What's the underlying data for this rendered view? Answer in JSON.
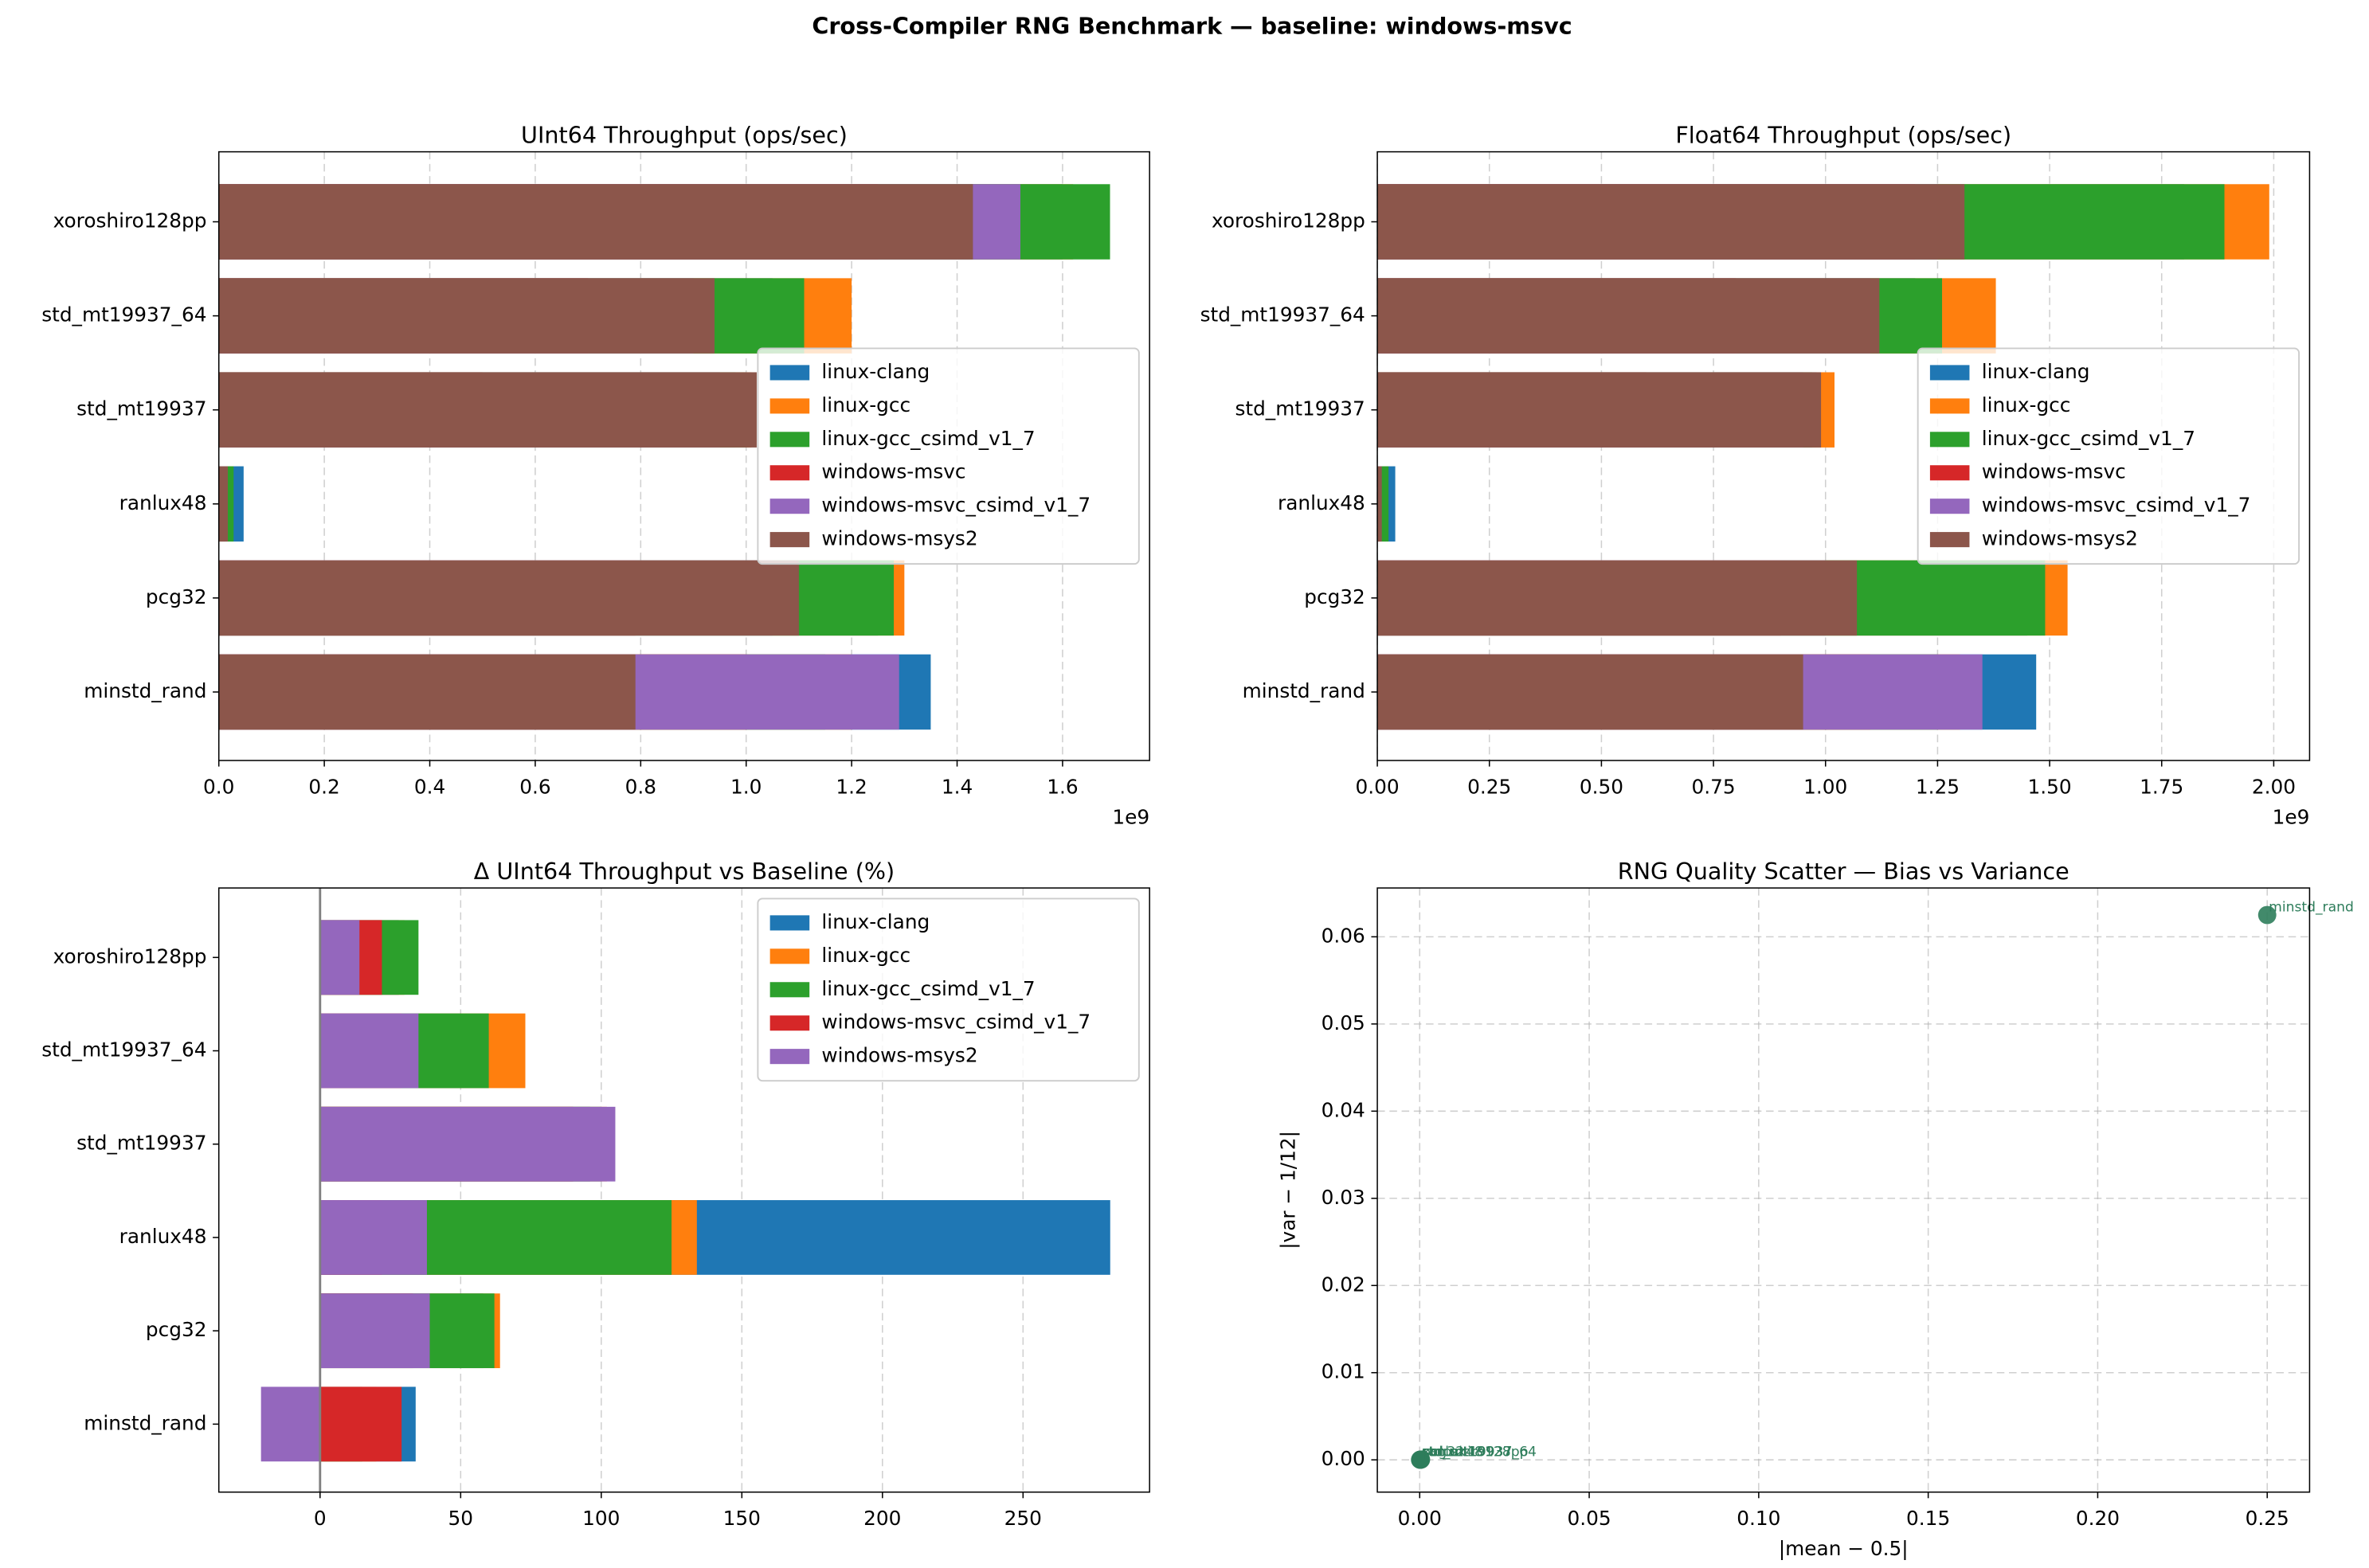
{
  "title": "Cross-Compiler RNG Benchmark — baseline: windows-msvc",
  "chart_data": [
    {
      "type": "barh",
      "title": "UInt64 Throughput (ops/sec)",
      "categories": [
        "xoroshiro128pp",
        "std_mt19937_64",
        "std_mt19937",
        "ranlux48",
        "pcg32",
        "minstd_rand"
      ],
      "series": [
        {
          "name": "linux-clang",
          "color": "#1f77b4",
          "values": [
            1.6,
            1.05,
            0.98,
            0.047,
            1.25,
            1.35
          ]
        },
        {
          "name": "linux-gcc",
          "color": "#ff7f0e",
          "values": [
            1.62,
            1.2,
            1.01,
            0.027,
            1.3,
            1.2
          ]
        },
        {
          "name": "linux-gcc_csimd_v1_7",
          "color": "#2ca02c",
          "values": [
            1.69,
            1.11,
            1.0,
            0.028,
            1.28,
            1.15
          ]
        },
        {
          "name": "windows-msvc",
          "color": "#d62728",
          "values": [
            1.25,
            0.7,
            0.5,
            0.012,
            0.79,
            1.0
          ]
        },
        {
          "name": "windows-msvc_csimd_v1_7",
          "color": "#9467bd",
          "values": [
            1.52,
            0.9,
            0.95,
            0.015,
            1.05,
            1.29
          ]
        },
        {
          "name": "windows-msys2",
          "color": "#8c564b",
          "values": [
            1.43,
            0.94,
            1.02,
            0.017,
            1.1,
            0.79
          ]
        }
      ],
      "xlim": [
        0,
        1.765
      ],
      "xticks": [
        {
          "value": 0,
          "label": "0.0"
        },
        {
          "value": 0.2,
          "label": "0.2"
        },
        {
          "value": 0.4,
          "label": "0.4"
        },
        {
          "value": 0.6,
          "label": "0.6"
        },
        {
          "value": 0.8,
          "label": "0.8"
        },
        {
          "value": 1.0,
          "label": "1.0"
        },
        {
          "value": 1.2,
          "label": "1.2"
        },
        {
          "value": 1.4,
          "label": "1.4"
        },
        {
          "value": 1.6,
          "label": "1.6"
        }
      ],
      "x_offset_label": "1e9",
      "grid": "x",
      "legend_loc": "center right"
    },
    {
      "type": "barh",
      "title": "Float64 Throughput (ops/sec)",
      "categories": [
        "xoroshiro128pp",
        "std_mt19937_64",
        "std_mt19937",
        "ranlux48",
        "pcg32",
        "minstd_rand"
      ],
      "series": [
        {
          "name": "linux-clang",
          "color": "#1f77b4",
          "values": [
            1.8,
            1.2,
            0.98,
            0.04,
            1.45,
            1.47
          ]
        },
        {
          "name": "linux-gcc",
          "color": "#ff7f0e",
          "values": [
            1.99,
            1.38,
            1.02,
            0.02,
            1.54,
            1.3
          ]
        },
        {
          "name": "linux-gcc_csimd_v1_7",
          "color": "#2ca02c",
          "values": [
            1.89,
            1.26,
            0.97,
            0.025,
            1.49,
            1.25
          ]
        },
        {
          "name": "windows-msvc",
          "color": "#d62728",
          "values": [
            1.2,
            0.8,
            0.6,
            0.009,
            0.9,
            1.1
          ]
        },
        {
          "name": "windows-msvc_csimd_v1_7",
          "color": "#9467bd",
          "values": [
            1.25,
            1.1,
            0.95,
            0.008,
            1.0,
            1.35
          ]
        },
        {
          "name": "windows-msys2",
          "color": "#8c564b",
          "values": [
            1.31,
            1.12,
            0.99,
            0.01,
            1.07,
            0.95
          ]
        }
      ],
      "xlim": [
        0,
        2.08
      ],
      "xticks": [
        {
          "value": 0,
          "label": "0.00"
        },
        {
          "value": 0.25,
          "label": "0.25"
        },
        {
          "value": 0.5,
          "label": "0.50"
        },
        {
          "value": 0.75,
          "label": "0.75"
        },
        {
          "value": 1.0,
          "label": "1.00"
        },
        {
          "value": 1.25,
          "label": "1.25"
        },
        {
          "value": 1.5,
          "label": "1.50"
        },
        {
          "value": 1.75,
          "label": "1.75"
        },
        {
          "value": 2.0,
          "label": "2.00"
        }
      ],
      "x_offset_label": "1e9",
      "grid": "x",
      "legend_loc": "center right"
    },
    {
      "type": "barh",
      "title": "Δ UInt64 Throughput vs Baseline (%)",
      "categories": [
        "xoroshiro128pp",
        "std_mt19937_64",
        "std_mt19937",
        "ranlux48",
        "pcg32",
        "minstd_rand"
      ],
      "series": [
        {
          "name": "linux-clang",
          "color": "#1f77b4",
          "values": [
            28,
            50,
            96,
            281,
            58,
            34
          ]
        },
        {
          "name": "linux-gcc",
          "color": "#ff7f0e",
          "values": [
            30,
            73,
            102,
            134,
            64,
            20
          ]
        },
        {
          "name": "linux-gcc_csimd_v1_7",
          "color": "#2ca02c",
          "values": [
            35,
            60,
            100,
            125,
            62,
            15
          ]
        },
        {
          "name": "windows-msvc_csimd_v1_7",
          "color": "#d62728",
          "values": [
            22,
            29,
            90,
            22,
            33,
            29
          ]
        },
        {
          "name": "windows-msys2",
          "color": "#9467bd",
          "values": [
            14,
            35,
            105,
            38,
            39,
            -21
          ]
        }
      ],
      "xlim": [
        -36,
        295
      ],
      "xticks": [
        0,
        50,
        100,
        150,
        200,
        250
      ],
      "vline_x": 0,
      "grid": "x",
      "legend_loc": "upper right"
    },
    {
      "type": "scatter",
      "title": "RNG Quality Scatter — Bias vs Variance",
      "x": [
        0.25,
        0.0002,
        0.0003,
        0.0001,
        0.0004,
        0.0002
      ],
      "y": [
        0.0625,
        1e-05,
        2e-05,
        1e-05,
        3e-05,
        2e-05
      ],
      "labels": [
        "minstd_rand",
        "xoroshiro128pp",
        "std_mt19937_64",
        "std_mt19937",
        "ranlux48",
        "pcg32"
      ],
      "color": "#2e7d5b",
      "xlabel": "|mean − 0.5|",
      "ylabel": "|var − 1/12|",
      "xlim": [
        -0.0125,
        0.2625
      ],
      "ylim": [
        -0.0037,
        0.0656
      ],
      "xticks": [
        {
          "value": 0,
          "label": "0.00"
        },
        {
          "value": 0.05,
          "label": "0.05"
        },
        {
          "value": 0.1,
          "label": "0.10"
        },
        {
          "value": 0.15,
          "label": "0.15"
        },
        {
          "value": 0.2,
          "label": "0.20"
        },
        {
          "value": 0.25,
          "label": "0.25"
        }
      ],
      "yticks": [
        {
          "value": 0,
          "label": "0.00"
        },
        {
          "value": 0.01,
          "label": "0.01"
        },
        {
          "value": 0.02,
          "label": "0.02"
        },
        {
          "value": 0.03,
          "label": "0.03"
        },
        {
          "value": 0.04,
          "label": "0.04"
        },
        {
          "value": 0.05,
          "label": "0.05"
        },
        {
          "value": 0.06,
          "label": "0.06"
        }
      ],
      "grid": "both"
    }
  ]
}
